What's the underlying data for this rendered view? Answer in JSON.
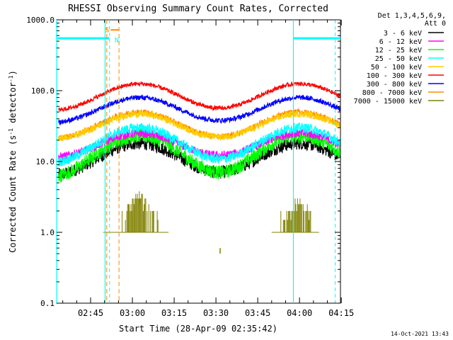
{
  "chart_data": {
    "type": "line",
    "title": "RHESSI Observing Summary Count Rates, Corrected",
    "xlabel": "Start Time (28-Apr-09 02:35:42)",
    "ylabel_main": "Corrected Count Rate (s",
    "ylabel_sup1": "-1",
    "ylabel_mid": " detector",
    "ylabel_sup2": "-1",
    "ylabel_end": ")",
    "y_scale": "log",
    "ylim": [
      0.1,
      1000
    ],
    "x_range_minutes": [
      -2.2,
      99.7
    ],
    "x_ticks": [
      {
        "label": "02:45",
        "minutes": 10
      },
      {
        "label": "03:00",
        "minutes": 25
      },
      {
        "label": "03:15",
        "minutes": 40
      },
      {
        "label": "03:30",
        "minutes": 55
      },
      {
        "label": "03:45",
        "minutes": 70
      },
      {
        "label": "04:00",
        "minutes": 85
      },
      {
        "label": "04:15",
        "minutes": 100
      }
    ],
    "y_ticks": [
      {
        "label": "0.1",
        "value": 0.1
      },
      {
        "label": "1.0",
        "value": 1
      },
      {
        "label": "10.0",
        "value": 10
      },
      {
        "label": "100.0",
        "value": 100
      },
      {
        "label": "1000.0",
        "value": 1000
      }
    ],
    "legend_header": [
      "Det 1,3,4,5,6,9,",
      "Att 0"
    ],
    "legend_position": "right",
    "series": [
      {
        "name": "3 - 6 keV",
        "color": "#000000",
        "min": 6,
        "max": 18,
        "noise": 0.09
      },
      {
        "name": "6 - 12 keV",
        "color": "#ff00ff",
        "min": 11,
        "max": 25,
        "noise": 0.06
      },
      {
        "name": "12 - 25 keV",
        "color": "#00ff00",
        "min": 5.5,
        "max": 23,
        "noise": 0.1
      },
      {
        "name": "25 - 50 keV",
        "color": "#00ffff",
        "min": 9,
        "max": 30,
        "noise": 0.07
      },
      {
        "name": "50 - 100 keV",
        "color": "#ffcc00",
        "min": 20,
        "max": 47,
        "noise": 0.05
      },
      {
        "name": "100 - 300 keV",
        "color": "#ff0000",
        "min": 50,
        "max": 125,
        "noise": 0.03
      },
      {
        "name": "300 - 800 keV",
        "color": "#0000ff",
        "min": 34,
        "max": 80,
        "noise": 0.035
      },
      {
        "name": "800 - 7000 keV",
        "color": "#ff8800",
        "min": 20,
        "max": 50,
        "noise": 0.04
      },
      {
        "name": "7000 - 15000 keV",
        "color": "#808000",
        "min": 0,
        "max": 3,
        "noise": 0
      }
    ],
    "peaks_minutes": [
      27.5,
      85
    ],
    "peak_sigma_minutes": 11.5,
    "top_series_gaps_minutes": [
      [
        13,
        38
      ],
      [
        55,
        66
      ]
    ],
    "bin_series_pattern_minutes": [
      {
        "start": 14.5,
        "end": 21,
        "level": 1
      },
      {
        "start": 21,
        "end": 23,
        "level": 1.5
      },
      {
        "start": 23,
        "end": 25,
        "level": 2.5
      },
      {
        "start": 25,
        "end": 30,
        "level": 3
      },
      {
        "start": 30,
        "end": 33,
        "level": 2
      },
      {
        "start": 33,
        "end": 35,
        "level": 1.5
      },
      {
        "start": 35,
        "end": 38,
        "level": 1
      },
      {
        "start": 75,
        "end": 78,
        "level": 1
      },
      {
        "start": 78,
        "end": 81,
        "level": 1.5
      },
      {
        "start": 81,
        "end": 86,
        "level": 2.5
      },
      {
        "start": 86,
        "end": 89,
        "level": 2
      },
      {
        "start": 89,
        "end": 92,
        "level": 1
      }
    ],
    "isolated_bin": {
      "minutes": 56.5,
      "value": 0.6
    },
    "saa_flag_segments": [
      {
        "start": -2.2,
        "end": 16.8,
        "value": 550
      },
      {
        "start": 82.8,
        "end": 99.7,
        "value": 550
      }
    ],
    "solid_markers_minutes": [
      -2.2,
      15.2,
      82.8
    ],
    "dashed_cyan_markers_minutes": [
      16.8,
      97.8
    ],
    "dashed_orange_markers_minutes": [
      15.8,
      20.2
    ],
    "flags": [
      {
        "label": "S",
        "minutes": 15.2,
        "color": "#ff8800"
      },
      {
        "label": "N",
        "minutes": 18.6,
        "color": "#00ffff"
      }
    ],
    "flag_bar": {
      "start": 17.2,
      "end": 20.2,
      "value": 720,
      "color": "#ff8800"
    },
    "timestamp": "14-Oct-2021 13:43"
  }
}
